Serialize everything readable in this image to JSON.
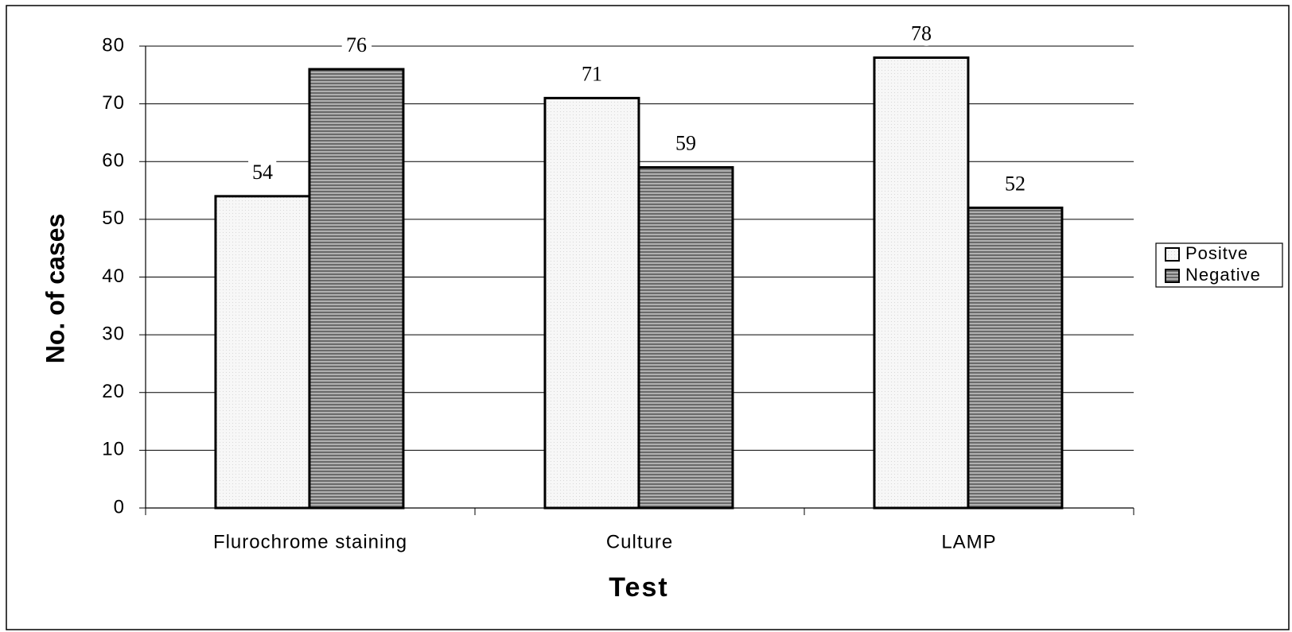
{
  "chart_data": {
    "type": "bar",
    "x_label": "Test",
    "y_label": "No. of cases",
    "categories": [
      "Flurochrome staining",
      "Culture",
      "LAMP"
    ],
    "series": [
      {
        "name": "Positve",
        "color": "#f2f2f2",
        "values": [
          54,
          71,
          78
        ]
      },
      {
        "name": "Negative",
        "color": "#8c8c8c",
        "values": [
          76,
          59,
          52
        ]
      }
    ],
    "ylim": [
      0,
      80
    ],
    "yticks": [
      0,
      10,
      20,
      30,
      40,
      50,
      60,
      70,
      80
    ],
    "grid": true,
    "legend": "right"
  }
}
